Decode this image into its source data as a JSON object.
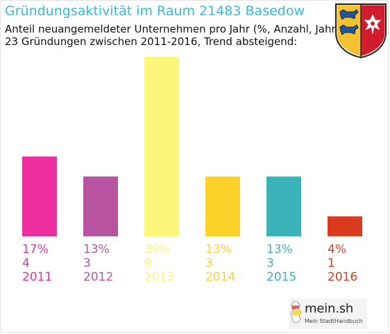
{
  "header": {
    "title": "Gründungsaktivität im Raum 21483 Basedow",
    "subtitle_line1": "Anteil neuangemeldeter Unternehmen pro Jahr (%, Anzahl, Jahr)",
    "subtitle_line2": "23 Gründungen zwischen 2011-2016, Trend absteigend:"
  },
  "crest_icon": "schleswig-holstein-coat-of-arms-icon",
  "logo": {
    "name": "mein.sh",
    "tagline": "Mein StadtHandbuch",
    "icon": "germany-map-icon"
  },
  "chart_data": {
    "type": "bar",
    "categories": [
      "2011",
      "2012",
      "2013",
      "2014",
      "2015",
      "2016"
    ],
    "values": [
      4,
      3,
      9,
      3,
      3,
      1
    ],
    "percent_labels": [
      "17%",
      "13%",
      "39%",
      "13%",
      "13%",
      "4%"
    ],
    "colors": [
      "#ee2e9f",
      "#b853a2",
      "#fcf67a",
      "#fdd22a",
      "#3bb4b9",
      "#db3a1e"
    ],
    "ylim": [
      0,
      9
    ],
    "grid": false,
    "legend": "none"
  }
}
